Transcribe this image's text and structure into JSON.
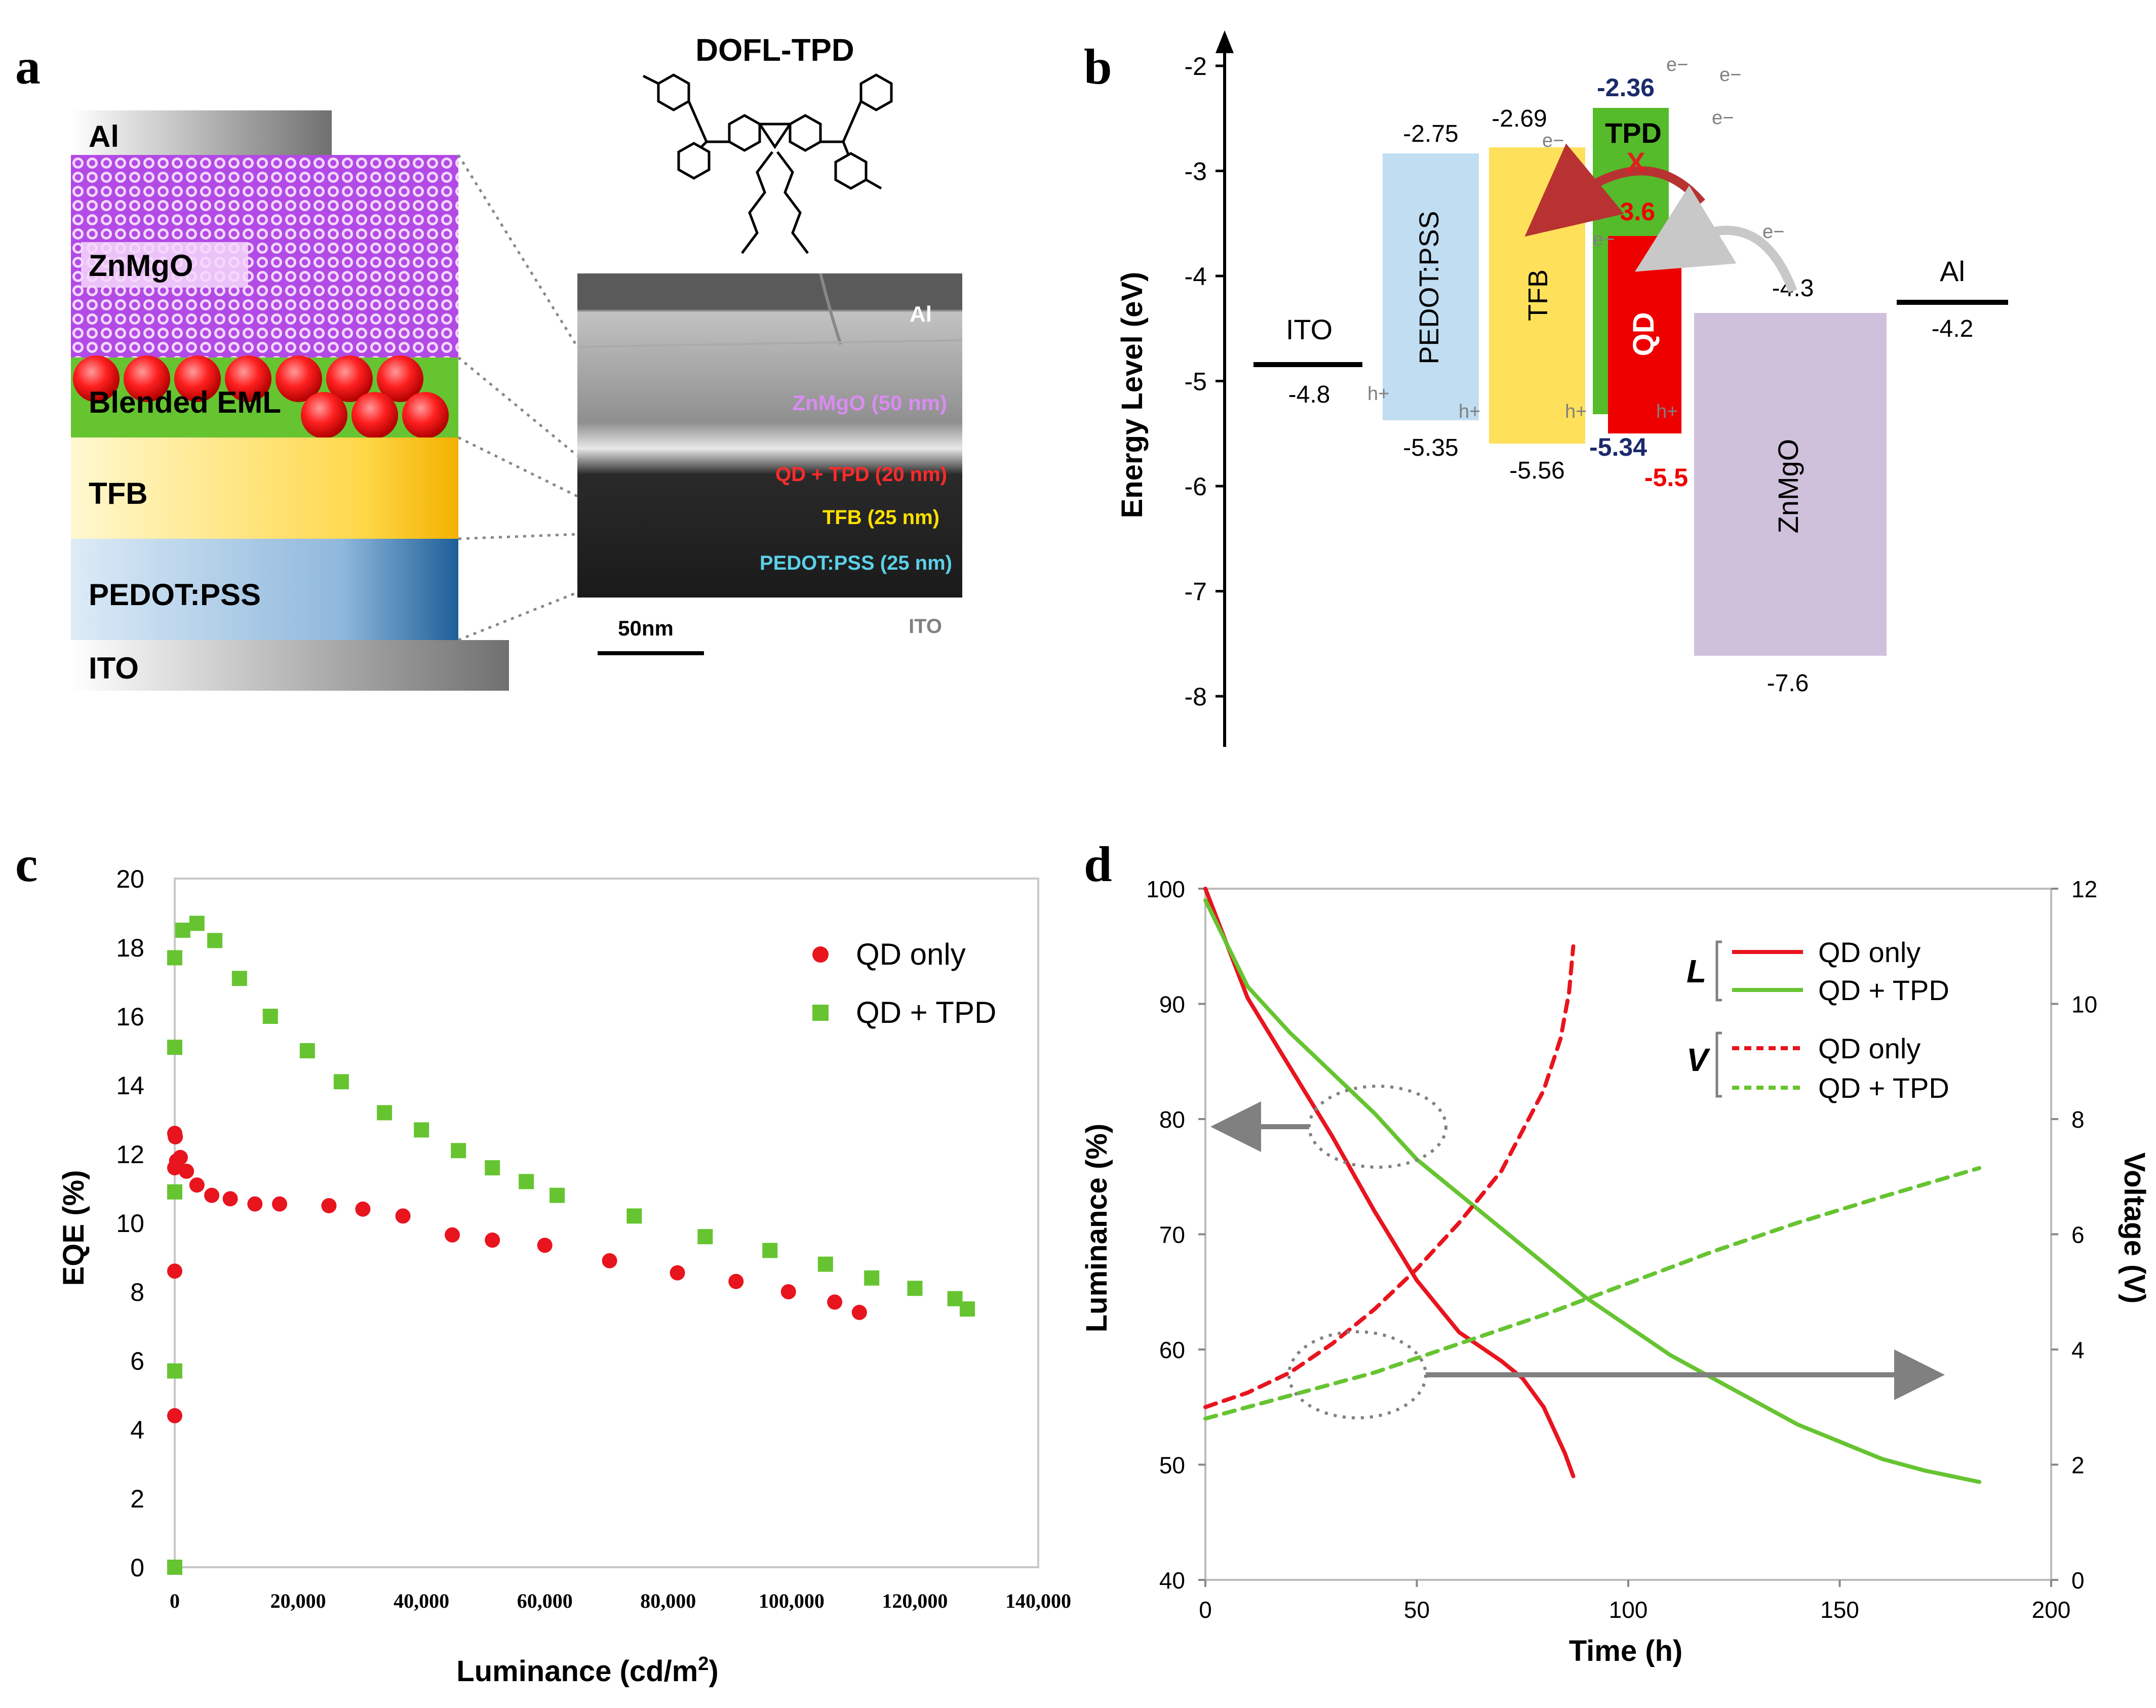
{
  "panels": {
    "a": "a",
    "b": "b",
    "c": "c",
    "d": "d"
  },
  "panel_a": {
    "stack_layers": [
      "Al",
      "ZnMgO",
      "Blended EML",
      "TFB",
      "PEDOT:PSS",
      "ITO"
    ],
    "molecule_title": "DOFL-TPD",
    "sem": {
      "al": "Al",
      "znmgo": "ZnMgO (50 nm)",
      "eml": "QD + TPD (20 nm)",
      "tfb": "TFB (25 nm)",
      "pedot": "PEDOT:PSS (25 nm)",
      "ito": "ITO",
      "scale_bar": "50nm"
    }
  },
  "panel_b": {
    "ylabel": "Energy Level (eV)",
    "yticks": [
      "-2",
      "-3",
      "-4",
      "-5",
      "-6",
      "-7",
      "-8"
    ],
    "layers": {
      "ito": {
        "name": "ITO",
        "wf": "-4.8"
      },
      "pedot": {
        "name": "PEDOT:PSS",
        "top": "-2.75",
        "bottom": "-5.35"
      },
      "tfb": {
        "name": "TFB",
        "top": "-2.69",
        "bottom": "-5.56"
      },
      "tpd": {
        "name": "TPD",
        "top": "-2.36",
        "bottom": "-5.34"
      },
      "qd": {
        "name": "QD",
        "top": "-3.6",
        "bottom": "-5.5"
      },
      "znmgo": {
        "name": "ZnMgO",
        "top": "-4.3",
        "bottom": "-7.6"
      },
      "al": {
        "name": "Al",
        "wf": "-4.2"
      }
    },
    "electron": "e−",
    "hole": "h+",
    "cross": "X"
  },
  "colors": {
    "red": "#e8141e",
    "green": "#66c431",
    "gray": "#808080",
    "pedot": "#c0ddf2",
    "tfb": "#ffe05a",
    "tpd": "#55bb2a",
    "qd": "#ee0000",
    "znmgo": "#cfc1dc",
    "purple": "#9b30d9",
    "navy": "#1b2a6b"
  },
  "chart_data": [
    {
      "panel": "c",
      "type": "scatter",
      "xlabel": "Luminance (cd/m2)",
      "ylabel": "EQE (%)",
      "xlim": [
        0,
        140000
      ],
      "ylim": [
        0,
        20
      ],
      "xticks": [
        "0",
        "20,000",
        "40,000",
        "60,000",
        "80,000",
        "100,000",
        "120,000",
        "140,000"
      ],
      "yticks": [
        "0",
        "2",
        "4",
        "6",
        "8",
        "10",
        "12",
        "14",
        "16",
        "18",
        "20"
      ],
      "legend": [
        "QD only",
        "QD + TPD"
      ],
      "series": [
        {
          "name": "QD only",
          "marker": "circle",
          "x": [
            0,
            0,
            0,
            0,
            100,
            300,
            900,
            1900,
            3600,
            6000,
            9000,
            13000,
            17000,
            25000,
            30500,
            37000,
            45000,
            51500,
            60000,
            70500,
            81500,
            91000,
            99500,
            107000,
            111000
          ],
          "y": [
            4.4,
            8.6,
            11.6,
            12.6,
            12.5,
            11.8,
            11.9,
            11.5,
            11.1,
            10.8,
            10.7,
            10.55,
            10.55,
            10.5,
            10.4,
            10.2,
            9.65,
            9.5,
            9.35,
            8.9,
            8.55,
            8.3,
            8.0,
            7.7,
            7.4
          ]
        },
        {
          "name": "QD + TPD",
          "marker": "square",
          "x": [
            0,
            0,
            0,
            0,
            0,
            1300,
            3600,
            6500,
            10500,
            15500,
            21500,
            27000,
            34000,
            40000,
            46000,
            51500,
            57000,
            62000,
            74500,
            86000,
            96500,
            105500,
            113000,
            120000,
            126500,
            128500
          ],
          "y": [
            0,
            5.7,
            10.9,
            15.1,
            17.7,
            18.5,
            18.7,
            18.2,
            17.1,
            16.0,
            15.0,
            14.1,
            13.2,
            12.7,
            12.1,
            11.6,
            11.2,
            10.8,
            10.2,
            9.6,
            9.2,
            8.8,
            8.4,
            8.1,
            7.8,
            7.5
          ]
        }
      ]
    },
    {
      "panel": "d",
      "type": "line",
      "xlabel": "Time (h)",
      "ylabel": "Luminance (%)",
      "ylabel2": "Voltage (V)",
      "xlim": [
        0,
        200
      ],
      "ylim": [
        40,
        100
      ],
      "y2lim": [
        0,
        12
      ],
      "xticks": [
        "0",
        "50",
        "100",
        "150",
        "200"
      ],
      "yticks": [
        "40",
        "50",
        "60",
        "70",
        "80",
        "90",
        "100"
      ],
      "y2ticks": [
        "0",
        "2",
        "4",
        "6",
        "8",
        "10",
        "12"
      ],
      "legend_L": "L",
      "legend_V": "V",
      "series": [
        {
          "name": "QD only",
          "group": "L",
          "style": "solid",
          "axis": "left",
          "x": [
            0,
            10,
            20,
            30,
            40,
            50,
            60,
            70,
            75,
            80,
            85,
            87
          ],
          "y": [
            100,
            90.5,
            84.5,
            78.5,
            72,
            66,
            61.5,
            59,
            57.5,
            55,
            51,
            49
          ]
        },
        {
          "name": "QD + TPD",
          "group": "L",
          "style": "solid",
          "axis": "left",
          "x": [
            0,
            10,
            20,
            30,
            40,
            50,
            60,
            70,
            80,
            90,
            100,
            110,
            120,
            130,
            140,
            150,
            160,
            170,
            183
          ],
          "y": [
            99,
            91.5,
            87.5,
            84,
            80.5,
            76.5,
            73.5,
            70.5,
            67.5,
            64.5,
            62,
            59.5,
            57.5,
            55.5,
            53.5,
            52,
            50.5,
            49.5,
            48.5
          ]
        },
        {
          "name": "QD only",
          "group": "V",
          "style": "dashed",
          "axis": "right",
          "x": [
            0,
            10,
            20,
            30,
            40,
            50,
            60,
            70,
            75,
            80,
            84,
            86,
            87
          ],
          "y": [
            3,
            3.25,
            3.6,
            4.1,
            4.7,
            5.4,
            6.2,
            7.1,
            7.8,
            8.5,
            9.4,
            10.2,
            11
          ]
        },
        {
          "name": "QD + TPD",
          "group": "V",
          "style": "dashed",
          "axis": "right",
          "x": [
            0,
            20,
            40,
            60,
            80,
            100,
            120,
            140,
            160,
            183
          ],
          "y": [
            2.8,
            3.2,
            3.6,
            4.1,
            4.6,
            5.15,
            5.7,
            6.2,
            6.65,
            7.15
          ]
        }
      ]
    }
  ]
}
